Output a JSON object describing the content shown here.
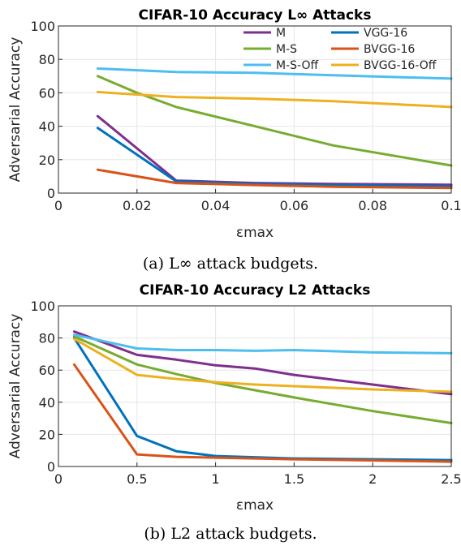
{
  "chart_data": [
    {
      "type": "line",
      "title": "CIFAR-10 Accuracy L∞ Attacks",
      "xlabel": "εmax",
      "ylabel": "Adversarial Accuracy",
      "xlim": [
        0,
        0.1
      ],
      "ylim": [
        0,
        100
      ],
      "xticks": [
        "0",
        "0.02",
        "0.04",
        "0.06",
        "0.08",
        "0.1"
      ],
      "yticks": [
        "0",
        "20",
        "40",
        "60",
        "80",
        "100"
      ],
      "grid": true,
      "legend": "top-right",
      "caption": "(a) L∞ attack budgets.",
      "series": [
        {
          "name": "M",
          "color": "#7e2f8e",
          "x": [
            0.01,
            0.03,
            0.05,
            0.07,
            0.1
          ],
          "y": [
            46,
            7.5,
            6,
            5.5,
            5
          ]
        },
        {
          "name": "M-S",
          "color": "#77ac30",
          "x": [
            0.01,
            0.02,
            0.03,
            0.05,
            0.07,
            0.1
          ],
          "y": [
            70,
            60,
            51.5,
            40,
            28.5,
            16.5
          ]
        },
        {
          "name": "M-S-Off",
          "color": "#4dbeee",
          "x": [
            0.01,
            0.03,
            0.05,
            0.07,
            0.1
          ],
          "y": [
            74.5,
            72.5,
            72,
            70.5,
            68.5
          ]
        },
        {
          "name": "VGG-16",
          "color": "#0072bd",
          "x": [
            0.01,
            0.03,
            0.05,
            0.07,
            0.1
          ],
          "y": [
            39,
            7,
            5.5,
            4.8,
            4
          ]
        },
        {
          "name": "BVGG-16",
          "color": "#d95319",
          "x": [
            0.01,
            0.03,
            0.05,
            0.07,
            0.1
          ],
          "y": [
            14,
            6,
            4.8,
            3.8,
            3
          ]
        },
        {
          "name": "BVGG-16-Off",
          "color": "#edb120",
          "x": [
            0.01,
            0.03,
            0.05,
            0.07,
            0.1
          ],
          "y": [
            60.5,
            57.5,
            56.5,
            55,
            51.5
          ]
        }
      ]
    },
    {
      "type": "line",
      "title": "CIFAR-10 Accuracy L2 Attacks",
      "xlabel": "εmax",
      "ylabel": "Adversarial Accuracy",
      "xlim": [
        0,
        2.5
      ],
      "ylim": [
        0,
        100
      ],
      "xticks": [
        "0",
        "0.5",
        "1",
        "1.5",
        "2",
        "2.5"
      ],
      "yticks": [
        "0",
        "20",
        "40",
        "60",
        "80",
        "100"
      ],
      "grid": true,
      "caption": "(b) L2 attack budgets.",
      "series": [
        {
          "name": "M",
          "color": "#7e2f8e",
          "x": [
            0.1,
            0.5,
            0.75,
            1,
            1.25,
            1.5,
            2,
            2.5
          ],
          "y": [
            84,
            69.5,
            66.5,
            63,
            61,
            57,
            51,
            45
          ]
        },
        {
          "name": "M-S",
          "color": "#77ac30",
          "x": [
            0.1,
            0.5,
            0.75,
            1,
            1.5,
            2,
            2.5
          ],
          "y": [
            81,
            63.5,
            57.5,
            52,
            43,
            34.5,
            27
          ]
        },
        {
          "name": "M-S-Off",
          "color": "#4dbeee",
          "x": [
            0.1,
            0.5,
            0.75,
            1,
            1.25,
            1.5,
            2,
            2.5
          ],
          "y": [
            82,
            73.5,
            72.5,
            72.5,
            72,
            72.5,
            71,
            70.5
          ]
        },
        {
          "name": "VGG-16",
          "color": "#0072bd",
          "x": [
            0.1,
            0.5,
            0.75,
            1,
            1.5,
            2,
            2.5
          ],
          "y": [
            80,
            19,
            9.5,
            6.5,
            5,
            4.5,
            4
          ]
        },
        {
          "name": "BVGG-16",
          "color": "#d95319",
          "x": [
            0.1,
            0.5,
            0.75,
            1,
            1.5,
            2,
            2.5
          ],
          "y": [
            63.5,
            7.5,
            6,
            5.5,
            4.5,
            3.8,
            3
          ]
        },
        {
          "name": "BVGG-16-Off",
          "color": "#edb120",
          "x": [
            0.1,
            0.5,
            0.75,
            1,
            1.25,
            1.5,
            2,
            2.5
          ],
          "y": [
            79.5,
            57,
            54.5,
            52.5,
            51,
            50,
            48,
            46.5
          ]
        }
      ]
    }
  ]
}
